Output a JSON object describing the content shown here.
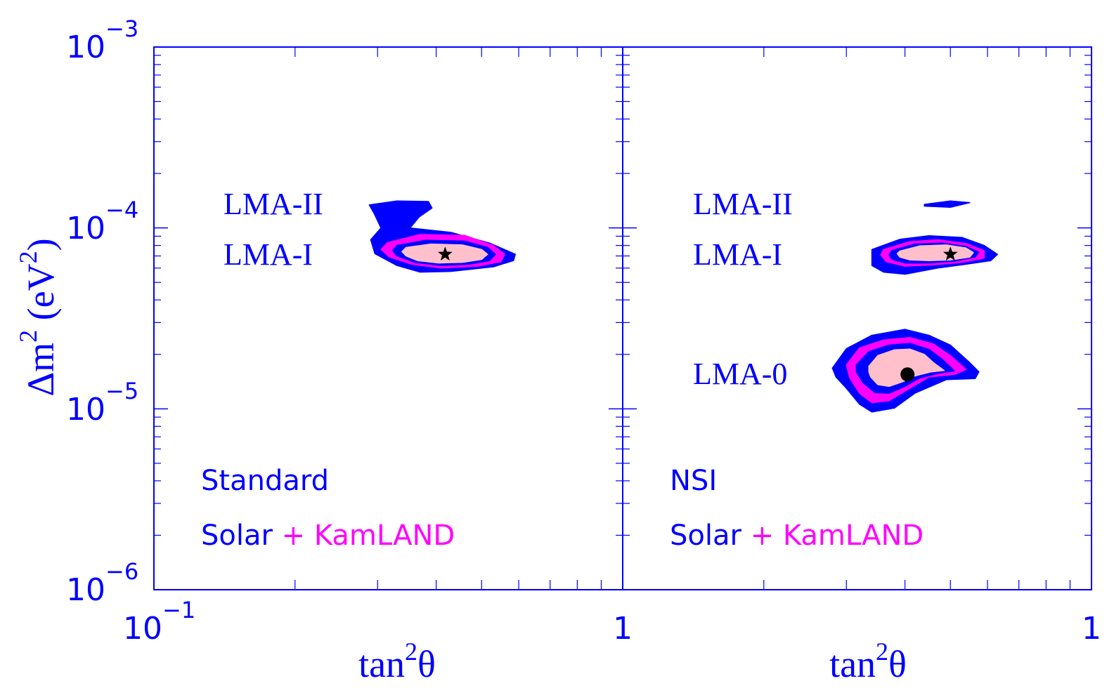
{
  "chart_data": [
    {
      "type": "contour",
      "panel": "Standard",
      "x_scale": "log",
      "y_scale": "log",
      "xlim": [
        0.1,
        1
      ],
      "ylim": [
        1e-06,
        0.001
      ],
      "xlabel": {
        "base": "tan",
        "sup": "2",
        "tail": "θ"
      },
      "ylabel": {
        "pre": "Δm",
        "sup1": "2",
        "mid": " (eV",
        "sup2": "2",
        "post": ")"
      },
      "x_ticklabels": [
        {
          "value": 0.1,
          "base": "10",
          "exp": "−1"
        },
        {
          "value": 1,
          "base": "1",
          "exp": ""
        }
      ],
      "y_ticklabels": [
        {
          "value": 0.001,
          "base": "10",
          "exp": "−3"
        },
        {
          "value": 0.0001,
          "base": "10",
          "exp": "−4"
        },
        {
          "value": 1e-05,
          "base": "10",
          "exp": "−5"
        },
        {
          "value": 1e-06,
          "base": "10",
          "exp": "−6"
        }
      ],
      "region_labels": [
        {
          "text": "LMA-II",
          "x": 0.138,
          "y": 0.000122
        },
        {
          "text": "LMA-I",
          "x": 0.138,
          "y": 7.15e-05
        }
      ],
      "best_fit": [
        {
          "marker": "star",
          "x": 0.418,
          "y": 7.15e-05
        }
      ],
      "legend": {
        "title": "Standard",
        "solar": "Solar",
        "plus": "+",
        "kamland": "KamLAND",
        "placement": "bottom-left"
      },
      "contours": [
        {
          "level": "outer",
          "color": "#0000ff",
          "outline": [
            [
              0.288,
              0.000134
            ],
            [
              0.33,
              0.000141
            ],
            [
              0.385,
              0.00014
            ],
            [
              0.392,
              0.000129
            ],
            [
              0.368,
              0.000115
            ],
            [
              0.352,
              0.0001
            ],
            [
              0.43,
              9.45e-05
            ],
            [
              0.52,
              8.25e-05
            ],
            [
              0.59,
              7.15e-05
            ],
            [
              0.585,
              6.6e-05
            ],
            [
              0.53,
              6.1e-05
            ],
            [
              0.43,
              5.75e-05
            ],
            [
              0.37,
              5.7e-05
            ],
            [
              0.33,
              6.2e-05
            ],
            [
              0.296,
              7.2e-05
            ],
            [
              0.29,
              8.6e-05
            ],
            [
              0.305,
              0.0001
            ],
            [
              0.295,
              0.00012
            ],
            [
              0.288,
              0.000134
            ]
          ]
        },
        {
          "level": "middle",
          "color": "#ff00ff",
          "outline": [
            [
              0.315,
              8.3e-05
            ],
            [
              0.37,
              9.2e-05
            ],
            [
              0.46,
              9.1e-05
            ],
            [
              0.53,
              8e-05
            ],
            [
              0.56,
              7.15e-05
            ],
            [
              0.55,
              6.5e-05
            ],
            [
              0.49,
              6.15e-05
            ],
            [
              0.41,
              6e-05
            ],
            [
              0.355,
              6.3e-05
            ],
            [
              0.318,
              6.9e-05
            ],
            [
              0.305,
              7.6e-05
            ],
            [
              0.315,
              8.3e-05
            ]
          ]
        },
        {
          "level": "inner_blue",
          "color": "#0000ff",
          "outline": [
            [
              0.33,
              8e-05
            ],
            [
              0.38,
              8.55e-05
            ],
            [
              0.46,
              8.45e-05
            ],
            [
              0.515,
              7.8e-05
            ],
            [
              0.535,
              7.15e-05
            ],
            [
              0.52,
              6.6e-05
            ],
            [
              0.47,
              6.3e-05
            ],
            [
              0.41,
              6.2e-05
            ],
            [
              0.36,
              6.45e-05
            ],
            [
              0.33,
              7e-05
            ],
            [
              0.323,
              7.5e-05
            ],
            [
              0.33,
              8e-05
            ]
          ]
        },
        {
          "level": "inner",
          "color": "#ffc0cb",
          "outline": [
            [
              0.345,
              7.8e-05
            ],
            [
              0.39,
              8.15e-05
            ],
            [
              0.455,
              8.05e-05
            ],
            [
              0.5,
              7.6e-05
            ],
            [
              0.515,
              7.15e-05
            ],
            [
              0.5,
              6.7e-05
            ],
            [
              0.455,
              6.45e-05
            ],
            [
              0.405,
              6.4e-05
            ],
            [
              0.365,
              6.6e-05
            ],
            [
              0.345,
              7e-05
            ],
            [
              0.338,
              7.4e-05
            ],
            [
              0.345,
              7.8e-05
            ]
          ]
        }
      ]
    },
    {
      "type": "contour",
      "panel": "NSI",
      "x_scale": "log",
      "y_scale": "log",
      "xlim": [
        0.1,
        1
      ],
      "ylim": [
        1e-06,
        0.001
      ],
      "xlabel": {
        "base": "tan",
        "sup": "2",
        "tail": "θ"
      },
      "x_ticklabels": [
        {
          "value": 1,
          "base": "1",
          "exp": ""
        }
      ],
      "region_labels": [
        {
          "text": "LMA-II",
          "x": 0.138,
          "y": 0.000122
        },
        {
          "text": "LMA-I",
          "x": 0.138,
          "y": 7.15e-05
        },
        {
          "text": "LMA-0",
          "x": 0.138,
          "y": 1.58e-05
        }
      ],
      "best_fit": [
        {
          "marker": "star",
          "x": 0.5,
          "y": 7.15e-05
        },
        {
          "marker": "dot",
          "x": 0.405,
          "y": 1.55e-05
        }
      ],
      "legend": {
        "title": "NSI",
        "solar": "Solar",
        "plus": "+",
        "kamland": "KamLAND",
        "placement": "bottom-left"
      },
      "contours": [
        {
          "level": "outer",
          "color": "#0000ff",
          "outline": [
            [
              0.44,
              0.000135
            ],
            [
              0.5,
              0.000141
            ],
            [
              0.55,
              0.000138
            ],
            [
              0.5,
              0.00013
            ],
            [
              0.44,
              0.000132
            ],
            [
              0.44,
              0.000135
            ]
          ]
        },
        {
          "level": "outer",
          "color": "#0000ff",
          "outline": [
            [
              0.34,
              7.6e-05
            ],
            [
              0.39,
              8.65e-05
            ],
            [
              0.45,
              9.05e-05
            ],
            [
              0.53,
              8.85e-05
            ],
            [
              0.59,
              8e-05
            ],
            [
              0.63,
              7.15e-05
            ],
            [
              0.61,
              6.6e-05
            ],
            [
              0.54,
              6.3e-05
            ],
            [
              0.47,
              6e-05
            ],
            [
              0.4,
              5.55e-05
            ],
            [
              0.36,
              5.7e-05
            ],
            [
              0.34,
              6.2e-05
            ],
            [
              0.34,
              7e-05
            ],
            [
              0.34,
              7.6e-05
            ]
          ]
        },
        {
          "level": "middle",
          "color": "#ff00ff",
          "outline": [
            [
              0.36,
              7.6e-05
            ],
            [
              0.41,
              8.4e-05
            ],
            [
              0.47,
              8.6e-05
            ],
            [
              0.54,
              8.2e-05
            ],
            [
              0.59,
              7.5e-05
            ],
            [
              0.59,
              6.8e-05
            ],
            [
              0.53,
              6.45e-05
            ],
            [
              0.46,
              6.25e-05
            ],
            [
              0.4,
              6.15e-05
            ],
            [
              0.365,
              6.5e-05
            ],
            [
              0.355,
              7.1e-05
            ],
            [
              0.36,
              7.6e-05
            ]
          ]
        },
        {
          "level": "inner_blue",
          "color": "#0000ff",
          "outline": [
            [
              0.375,
              7.5e-05
            ],
            [
              0.42,
              8.15e-05
            ],
            [
              0.48,
              8.25e-05
            ],
            [
              0.54,
              7.9e-05
            ],
            [
              0.575,
              7.35e-05
            ],
            [
              0.565,
              6.9e-05
            ],
            [
              0.51,
              6.55e-05
            ],
            [
              0.45,
              6.4e-05
            ],
            [
              0.4,
              6.4e-05
            ],
            [
              0.375,
              6.7e-05
            ],
            [
              0.37,
              7.1e-05
            ],
            [
              0.375,
              7.5e-05
            ]
          ]
        },
        {
          "level": "inner",
          "color": "#ffc0cb",
          "outline": [
            [
              0.39,
              7.45e-05
            ],
            [
              0.43,
              7.95e-05
            ],
            [
              0.49,
              8.05e-05
            ],
            [
              0.54,
              7.75e-05
            ],
            [
              0.56,
              7.3e-05
            ],
            [
              0.55,
              6.9e-05
            ],
            [
              0.5,
              6.65e-05
            ],
            [
              0.45,
              6.6e-05
            ],
            [
              0.41,
              6.65e-05
            ],
            [
              0.39,
              6.9e-05
            ],
            [
              0.385,
              7.2e-05
            ],
            [
              0.39,
              7.45e-05
            ]
          ]
        },
        {
          "level": "outer",
          "color": "#0000ff",
          "outline": [
            [
              0.28,
              1.68e-05
            ],
            [
              0.3,
              2.15e-05
            ],
            [
              0.34,
              2.55e-05
            ],
            [
              0.4,
              2.75e-05
            ],
            [
              0.45,
              2.55e-05
            ],
            [
              0.5,
              2.25e-05
            ],
            [
              0.55,
              1.8e-05
            ],
            [
              0.575,
              1.6e-05
            ],
            [
              0.565,
              1.47e-05
            ],
            [
              0.49,
              1.45e-05
            ],
            [
              0.42,
              1.22e-05
            ],
            [
              0.38,
              1.01e-05
            ],
            [
              0.34,
              9.6e-06
            ],
            [
              0.32,
              1.06e-05
            ],
            [
              0.3,
              1.3e-05
            ],
            [
              0.285,
              1.5e-05
            ],
            [
              0.28,
              1.68e-05
            ]
          ]
        },
        {
          "level": "middle",
          "color": "#ff00ff",
          "outline": [
            [
              0.3,
              1.75e-05
            ],
            [
              0.32,
              2.17e-05
            ],
            [
              0.36,
              2.4e-05
            ],
            [
              0.41,
              2.48e-05
            ],
            [
              0.46,
              2.28e-05
            ],
            [
              0.5,
              1.97e-05
            ],
            [
              0.54,
              1.65e-05
            ],
            [
              0.51,
              1.55e-05
            ],
            [
              0.45,
              1.5e-05
            ],
            [
              0.41,
              1.3e-05
            ],
            [
              0.37,
              1.11e-05
            ],
            [
              0.34,
              1.08e-05
            ],
            [
              0.32,
              1.22e-05
            ],
            [
              0.305,
              1.48e-05
            ],
            [
              0.3,
              1.75e-05
            ]
          ]
        },
        {
          "level": "inner_blue",
          "color": "#0000ff",
          "outline": [
            [
              0.315,
              1.75e-05
            ],
            [
              0.335,
              2.07e-05
            ],
            [
              0.37,
              2.25e-05
            ],
            [
              0.41,
              2.3e-05
            ],
            [
              0.45,
              2.13e-05
            ],
            [
              0.48,
              1.88e-05
            ],
            [
              0.51,
              1.62e-05
            ],
            [
              0.47,
              1.57e-05
            ],
            [
              0.43,
              1.48e-05
            ],
            [
              0.4,
              1.33e-05
            ],
            [
              0.37,
              1.22e-05
            ],
            [
              0.345,
              1.23e-05
            ],
            [
              0.325,
              1.4e-05
            ],
            [
              0.315,
              1.6e-05
            ],
            [
              0.315,
              1.75e-05
            ]
          ]
        },
        {
          "level": "inner",
          "color": "#ffc0cb",
          "outline": [
            [
              0.335,
              1.72e-05
            ],
            [
              0.35,
              1.97e-05
            ],
            [
              0.38,
              2.12e-05
            ],
            [
              0.41,
              2.14e-05
            ],
            [
              0.44,
              2e-05
            ],
            [
              0.46,
              1.8e-05
            ],
            [
              0.485,
              1.63e-05
            ],
            [
              0.455,
              1.6e-05
            ],
            [
              0.42,
              1.52e-05
            ],
            [
              0.395,
              1.41e-05
            ],
            [
              0.37,
              1.33e-05
            ],
            [
              0.35,
              1.36e-05
            ],
            [
              0.338,
              1.5e-05
            ],
            [
              0.335,
              1.6e-05
            ],
            [
              0.335,
              1.72e-05
            ]
          ]
        }
      ]
    }
  ]
}
